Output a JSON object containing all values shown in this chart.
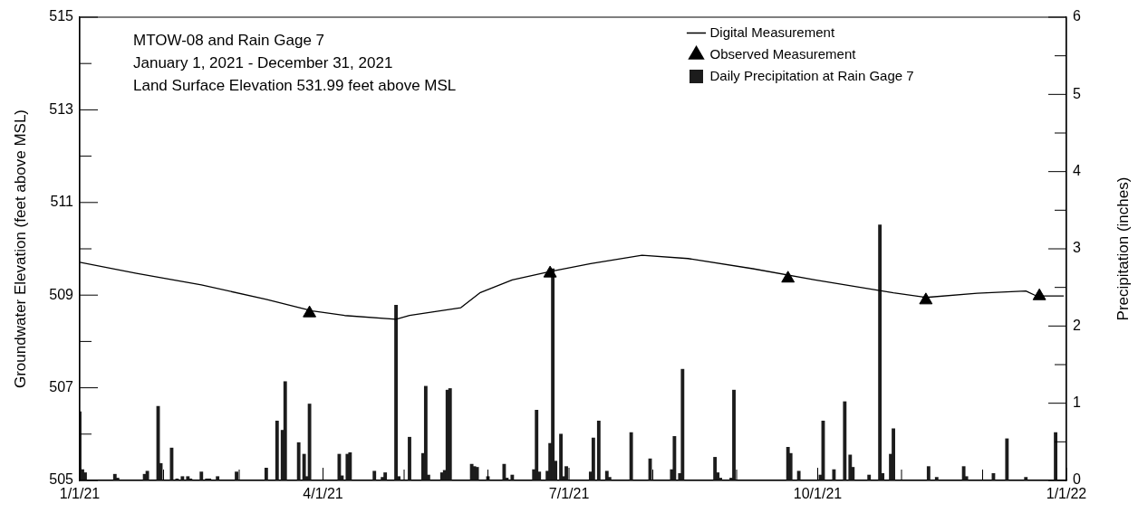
{
  "chart_data": {
    "type": "line",
    "title": "MTOW-08 and Rain Gage 7",
    "subtitle": "January 1, 2021 - December 31, 2021",
    "annotations": [
      "Land Surface Elevation 531.99 feet above MSL"
    ],
    "ylabel": "Groundwater Elevation (feet above MSL)",
    "y2label": "Precipitation (inches)",
    "legend": "top right",
    "xlim": [
      "2021-01-01",
      "2022-01-01"
    ],
    "xticks": [
      {
        "value": "2021-01-01",
        "label": "1/1/21"
      },
      {
        "value": "2021-02-01",
        "label": null
      },
      {
        "value": "2021-03-01",
        "label": null
      },
      {
        "value": "2021-04-01",
        "label": "4/1/21"
      },
      {
        "value": "2021-05-01",
        "label": null
      },
      {
        "value": "2021-06-01",
        "label": null
      },
      {
        "value": "2021-07-01",
        "label": "7/1/21"
      },
      {
        "value": "2021-08-01",
        "label": null
      },
      {
        "value": "2021-09-01",
        "label": null
      },
      {
        "value": "2021-10-01",
        "label": "10/1/21"
      },
      {
        "value": "2021-11-01",
        "label": null
      },
      {
        "value": "2021-12-01",
        "label": null
      },
      {
        "value": "2022-01-01",
        "label": "1/1/22"
      }
    ],
    "ylim": [
      505,
      515
    ],
    "yticks": [
      505,
      {
        "value": 506,
        "label": null
      },
      507,
      {
        "value": 508,
        "label": null
      },
      509,
      {
        "value": 510,
        "label": null
      },
      511,
      {
        "value": 512,
        "label": null
      },
      513,
      {
        "value": 514,
        "label": null
      },
      515
    ],
    "y2lim": [
      0,
      6
    ],
    "y2ticks": [
      0,
      {
        "value": 0.5,
        "label": null
      },
      1,
      {
        "value": 1.5,
        "label": null
      },
      2,
      {
        "value": 2.5,
        "label": null
      },
      3,
      {
        "value": 3.5,
        "label": null
      },
      4,
      {
        "value": 4.5,
        "label": null
      },
      5,
      {
        "value": 5.5,
        "label": null
      },
      6
    ],
    "series": [
      {
        "name": "Digital Measurement",
        "color": "#000000",
        "marker": "none",
        "line_style": "solid",
        "x": [
          "2021-01-01",
          "2021-01-22",
          "2021-02-15",
          "2021-03-11",
          "2021-03-28",
          "2021-04-09",
          "2021-04-28",
          "2021-05-03",
          "2021-05-22",
          "2021-05-29",
          "2021-06-10",
          "2021-06-24",
          "2021-07-09",
          "2021-07-28",
          "2021-08-14",
          "2021-09-07",
          "2021-09-30",
          "2021-10-29",
          "2021-11-10",
          "2021-11-29",
          "2021-12-17",
          "2021-12-21",
          "2021-12-31"
        ],
        "values": [
          509.71,
          509.47,
          509.22,
          508.91,
          508.66,
          508.56,
          508.48,
          508.56,
          508.73,
          509.05,
          509.33,
          509.51,
          509.68,
          509.86,
          509.79,
          509.57,
          509.33,
          509.05,
          508.95,
          509.04,
          509.09,
          508.98,
          508.98
        ]
      },
      {
        "name": "Observed Measurement",
        "type": "scatter",
        "color": "#000000",
        "marker": "triangle",
        "x": [
          "2021-03-27",
          "2021-06-24",
          "2021-09-20",
          "2021-11-10",
          "2021-12-22"
        ],
        "values": [
          508.61,
          509.47,
          509.36,
          508.89,
          508.98
        ]
      },
      {
        "name": "Daily Precipitation at Rain Gage 7",
        "type": "bar",
        "color": "#1c1c1c",
        "axis": "y2",
        "x": [
          "2021-01-01",
          "2021-01-02",
          "2021-01-03",
          "2021-01-14",
          "2021-01-15",
          "2021-01-25",
          "2021-01-26",
          "2021-01-30",
          "2021-01-31",
          "2021-02-04",
          "2021-02-06",
          "2021-02-08",
          "2021-02-10",
          "2021-02-11",
          "2021-02-15",
          "2021-02-17",
          "2021-02-18",
          "2021-02-21",
          "2021-02-28",
          "2021-03-11",
          "2021-03-15",
          "2021-03-17",
          "2021-03-18",
          "2021-03-23",
          "2021-03-25",
          "2021-03-26",
          "2021-03-27",
          "2021-04-07",
          "2021-04-08",
          "2021-04-10",
          "2021-04-11",
          "2021-04-20",
          "2021-04-23",
          "2021-04-24",
          "2021-04-28",
          "2021-04-29",
          "2021-05-03",
          "2021-05-08",
          "2021-05-09",
          "2021-05-10",
          "2021-05-15",
          "2021-05-16",
          "2021-05-17",
          "2021-05-18",
          "2021-05-26",
          "2021-05-27",
          "2021-05-28",
          "2021-06-01",
          "2021-06-07",
          "2021-06-08",
          "2021-06-10",
          "2021-06-18",
          "2021-06-19",
          "2021-06-20",
          "2021-06-23",
          "2021-06-24",
          "2021-06-25",
          "2021-06-26",
          "2021-06-28",
          "2021-06-29",
          "2021-06-30",
          "2021-07-09",
          "2021-07-10",
          "2021-07-12",
          "2021-07-15",
          "2021-07-16",
          "2021-07-24",
          "2021-07-31",
          "2021-08-08",
          "2021-08-09",
          "2021-08-11",
          "2021-08-12",
          "2021-08-24",
          "2021-08-25",
          "2021-08-26",
          "2021-08-30",
          "2021-08-31",
          "2021-09-20",
          "2021-09-21",
          "2021-09-24",
          "2021-10-02",
          "2021-10-03",
          "2021-10-07",
          "2021-10-11",
          "2021-10-13",
          "2021-10-14",
          "2021-10-20",
          "2021-10-24",
          "2021-10-25",
          "2021-10-28",
          "2021-10-29",
          "2021-11-11",
          "2021-11-14",
          "2021-11-24",
          "2021-11-25",
          "2021-12-05",
          "2021-12-10",
          "2021-12-17",
          "2021-12-28"
        ],
        "values": [
          0.89,
          0.14,
          0.1,
          0.08,
          0.03,
          0.08,
          0.12,
          0.96,
          0.22,
          0.42,
          0.02,
          0.05,
          0.05,
          0.02,
          0.11,
          0.02,
          0.02,
          0.05,
          0.11,
          0.16,
          0.77,
          0.65,
          1.28,
          0.49,
          0.34,
          0.05,
          0.99,
          0.34,
          0.06,
          0.34,
          0.36,
          0.12,
          0.04,
          0.1,
          2.27,
          0.05,
          0.56,
          0.35,
          1.22,
          0.07,
          0.1,
          0.13,
          1.17,
          1.19,
          0.21,
          0.18,
          0.17,
          0.05,
          0.21,
          0.03,
          0.07,
          0.14,
          0.91,
          0.11,
          0.12,
          0.48,
          2.74,
          0.25,
          0.6,
          0.05,
          0.18,
          0.11,
          0.55,
          0.77,
          0.12,
          0.04,
          0.62,
          0.28,
          0.14,
          0.57,
          0.09,
          1.44,
          0.3,
          0.1,
          0.03,
          0.03,
          1.17,
          0.43,
          0.35,
          0.12,
          0.07,
          0.77,
          0.14,
          1.02,
          0.33,
          0.17,
          0.07,
          3.31,
          0.09,
          0.34,
          0.67,
          0.18,
          0.04,
          0.18,
          0.05,
          0.09,
          0.54,
          0.04,
          0.62
        ]
      }
    ]
  }
}
